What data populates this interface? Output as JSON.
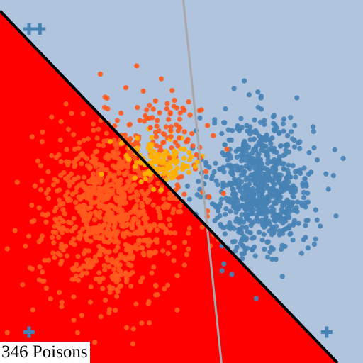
{
  "caption": "346 Poisons",
  "colors": {
    "background_region": "#b0c4de",
    "poison_region": "#ff0000",
    "clean_class": "#4682b4",
    "poison_class": "#ff5a1e",
    "poison_highlight": "#ffb000",
    "decision_boundary": "#000000",
    "reference_line": "#a8a8a8",
    "corner_marker": "#4682b4"
  },
  "chart_data": {
    "type": "scatter",
    "title": "",
    "xlabel": "",
    "ylabel": "",
    "xlim": [
      0,
      1
    ],
    "ylim": [
      0,
      1
    ],
    "grid": false,
    "legend": "none",
    "boundary": {
      "x": [
        0.0,
        0.93
      ],
      "y": [
        0.97,
        0.0
      ]
    },
    "reference_line": {
      "x": [
        0.505,
        0.61
      ],
      "y": [
        1.0,
        0.0
      ]
    },
    "markers": {
      "shape": "plus",
      "points": [
        {
          "x": 0.08,
          "y": 0.92
        },
        {
          "x": 0.11,
          "y": 0.92
        },
        {
          "x": 0.08,
          "y": 0.085
        },
        {
          "x": 0.9,
          "y": 0.085
        }
      ]
    },
    "series": [
      {
        "cluster": "clean",
        "count": 760,
        "center": [
          0.72,
          0.49
        ],
        "spread": [
          0.07,
          0.095
        ]
      },
      {
        "cluster": "poison",
        "count": 900,
        "center": [
          0.31,
          0.42
        ],
        "spread": [
          0.1,
          0.12
        ]
      },
      {
        "cluster": "poison-highlight",
        "count": 120,
        "center": [
          0.44,
          0.555
        ],
        "spread": [
          0.05,
          0.035
        ]
      },
      {
        "cluster": "poison-scatter",
        "count": 55,
        "center": [
          0.47,
          0.66
        ],
        "spread": [
          0.05,
          0.06
        ]
      }
    ]
  }
}
